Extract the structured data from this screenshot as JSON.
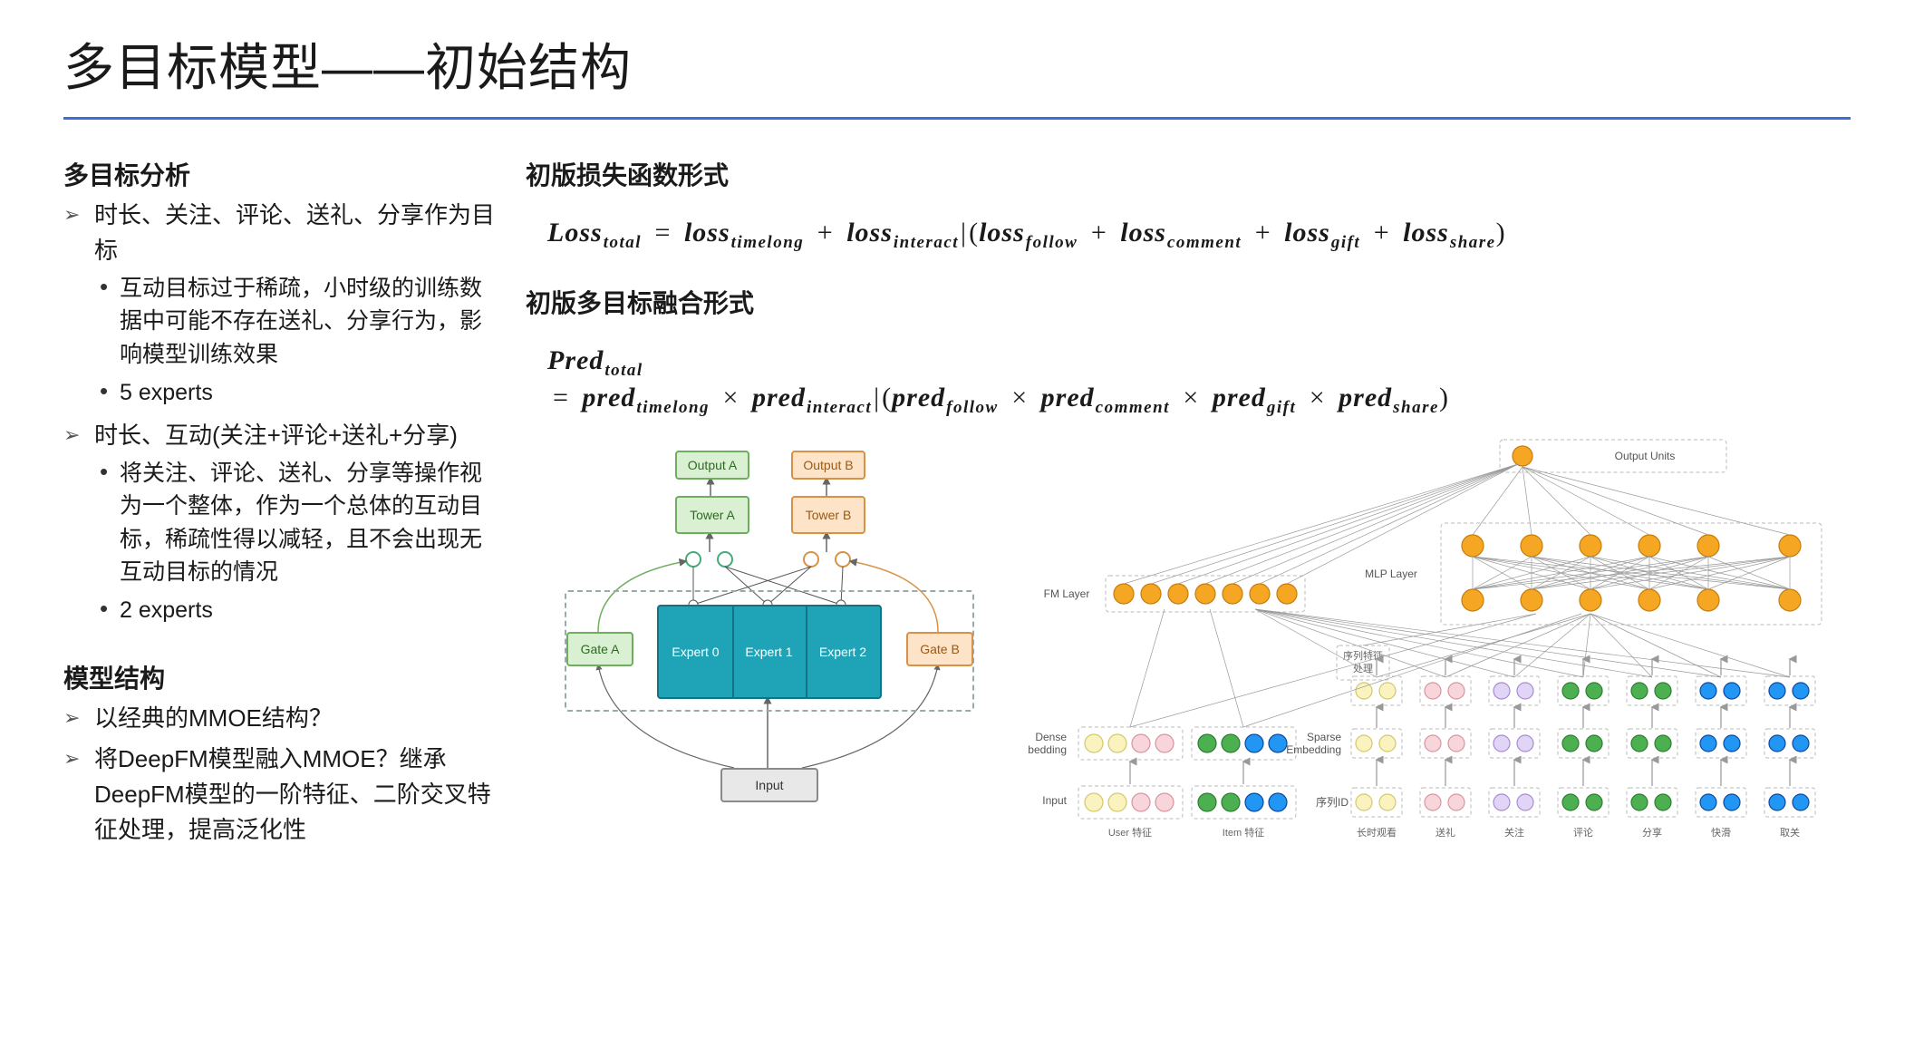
{
  "slide": {
    "title": "多目标模型——初始结构",
    "rule_color": "#3a6fd8"
  },
  "left": {
    "section1_heading": "多目标分析",
    "section1_item1": "时长、关注、评论、送礼、分享作为目标",
    "section1_item1_sub1": "互动目标过于稀疏，小时级的训练数据中可能不存在送礼、分享行为，影响模型训练效果",
    "section1_item1_sub2": "5 experts",
    "section1_item2": "时长、互动(关注+评论+送礼+分享)",
    "section1_item2_sub1": "将关注、评论、送礼、分享等操作视为一个整体，作为一个总体的互动目标，稀疏性得以减轻，且不会出现无互动目标的情况",
    "section1_item2_sub2": "2 experts",
    "section2_heading": "模型结构",
    "section2_item1": "以经典的MMOE结构？",
    "section2_item2": "将DeepFM模型融入MMOE？继承DeepFM模型的一阶特征、二阶交叉特征处理，提高泛化性"
  },
  "right": {
    "heading_loss": "初版损失函数形式",
    "heading_fusion": "初版多目标融合形式",
    "loss": {
      "lhs_base": "Loss",
      "lhs_sub": "total",
      "eq": "=",
      "t1_base": "loss",
      "t1_sub": "timelong",
      "plus": "+",
      "t2_base": "loss",
      "t2_sub": "interact",
      "bar": "|",
      "lp": "(",
      "rp": ")",
      "t3_base": "loss",
      "t3_sub": "follow",
      "t4_base": "loss",
      "t4_sub": "comment",
      "t5_base": "loss",
      "t5_sub": "gift",
      "t6_base": "loss",
      "t6_sub": "share"
    },
    "pred": {
      "lhs_base": "Pred",
      "lhs_sub": "total",
      "eq": "=",
      "t1_base": "pred",
      "t1_sub": "timelong",
      "times": "×",
      "t2_base": "pred",
      "t2_sub": "interact",
      "bar": "|",
      "lp": "(",
      "rp": ")",
      "t3_base": "pred",
      "t3_sub": "follow",
      "t4_base": "pred",
      "t4_sub": "comment",
      "t5_base": "pred",
      "t5_sub": "gift",
      "t6_base": "pred",
      "t6_sub": "share"
    }
  },
  "mmoe": {
    "output_a": "Output A",
    "output_b": "Output B",
    "tower_a": "Tower A",
    "tower_b": "Tower B",
    "gate_a": "Gate A",
    "gate_b": "Gate B",
    "expert0": "Expert 0",
    "expert1": "Expert 1",
    "expert2": "Expert 2",
    "input": "Input",
    "colors": {
      "green_bg": "#d9f0d3",
      "green_border": "#6fae5e",
      "orange_bg": "#fde3c8",
      "orange_border": "#d89246",
      "expert_bg": "#1fa3b7",
      "expert_border": "#137384",
      "input_bg": "#e8e8e8",
      "input_border": "#8a8a8a"
    }
  },
  "deepfm": {
    "output_units": "Output Units",
    "fm_layer": "FM Layer",
    "mlp_layer": "MLP Layer",
    "dense_embedding": "Dense\nEmbedding",
    "sparse_embedding": "Sparse\nEmbedding",
    "input": "Input",
    "seq_proc": "序列特征\n处理",
    "seq_id": "序列ID",
    "bottom_labels": [
      "User 特征",
      "Item 特征",
      "长时观看",
      "送礼",
      "关注",
      "评论",
      "分享",
      "快滑",
      "取关"
    ],
    "colors": {
      "orange": "#f5a623",
      "yellow": "#faf3c0",
      "pink": "#f7d5da",
      "green": "#4caf50",
      "blue": "#2196f3",
      "purple": "#e0d4f7"
    },
    "dense_row": [
      [
        "yellow",
        "yellow",
        "pink",
        "pink"
      ],
      [
        "green",
        "green",
        "blue",
        "blue"
      ]
    ],
    "sparse_row_groups": 7,
    "sparse_colors": [
      "yellow",
      "yellow",
      "pink",
      "pink",
      "purple",
      "purple",
      "green",
      "green",
      "blue",
      "blue"
    ]
  }
}
